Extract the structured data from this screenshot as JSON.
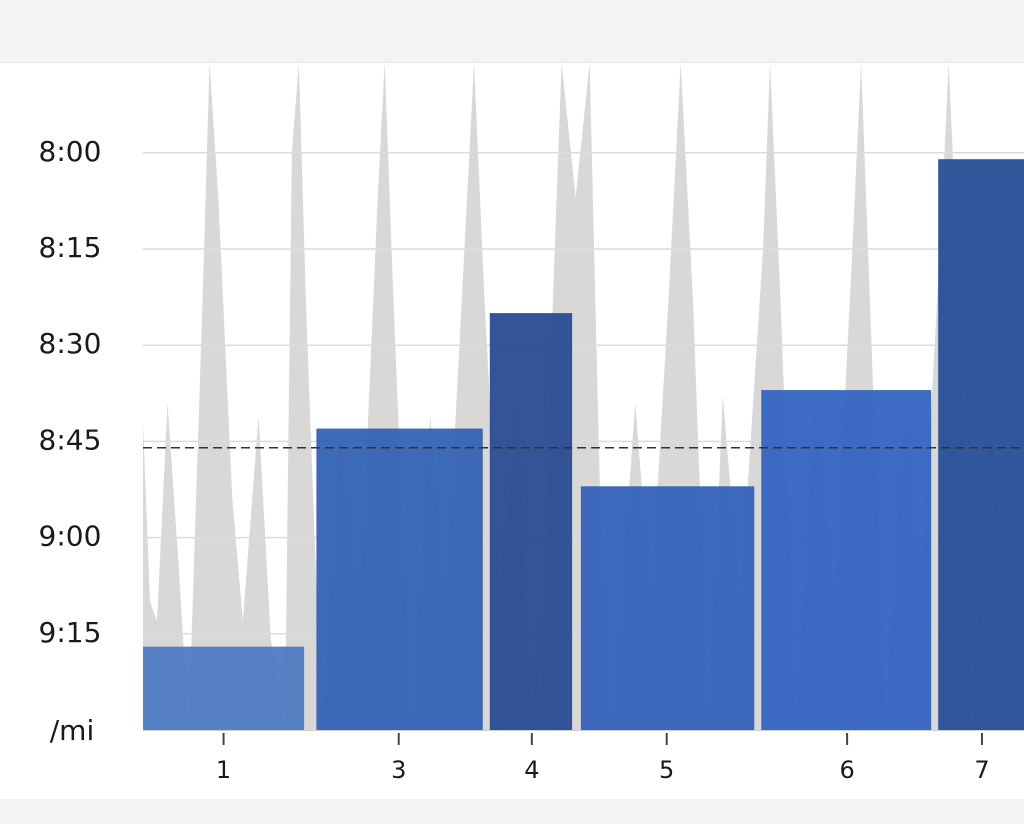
{
  "chart_data": {
    "type": "bar",
    "y_unit": "/mi",
    "ylim": [
      570,
      466
    ],
    "yticks": [
      {
        "value": 480,
        "label": "8:00"
      },
      {
        "value": 495,
        "label": "8:15"
      },
      {
        "value": 510,
        "label": "8:30"
      },
      {
        "value": 525,
        "label": "8:45"
      },
      {
        "value": 540,
        "label": "9:00"
      },
      {
        "value": 555,
        "label": "9:15"
      }
    ],
    "xlim": [
      0,
      50.3
    ],
    "xticks": [
      {
        "value": 4.6,
        "label": "1"
      },
      {
        "value": 14.6,
        "label": "3"
      },
      {
        "value": 22.2,
        "label": "4"
      },
      {
        "value": 29.9,
        "label": "5"
      },
      {
        "value": 40.2,
        "label": "6"
      },
      {
        "value": 47.9,
        "label": "7"
      }
    ],
    "grid": true,
    "bars": {
      "x_start": [
        0,
        9.9,
        19.8,
        25.0,
        35.3,
        45.4
      ],
      "x_end": [
        9.2,
        19.4,
        24.5,
        34.9,
        45.0,
        50.3
      ],
      "values": [
        557,
        523,
        505,
        532,
        517,
        481
      ],
      "colors": [
        "#4a78c2",
        "#2f5fb5",
        "#23478f",
        "#2f5eb8",
        "#2f60bf",
        "#234a96"
      ]
    },
    "reference_line": {
      "value": 526,
      "color": "#333333"
    },
    "background_area": {
      "color": "#d9d8d7",
      "x": [
        0,
        0.4,
        0.8,
        1.4,
        2.0,
        2.6,
        3.4,
        3.8,
        4.3,
        5.1,
        5.7,
        6.6,
        7.3,
        8.1,
        8.5,
        8.9,
        9.3,
        10.2,
        11.3,
        12.4,
        13.4,
        13.8,
        14.3,
        15.3,
        16.4,
        17.3,
        18.2,
        18.9,
        19.5,
        20.4,
        21.4,
        22.1,
        22.7,
        23.4,
        23.9,
        24.7,
        25.5,
        26.1,
        26.8,
        28.1,
        29.0,
        30.0,
        30.7,
        31.4,
        32.3,
        33.1,
        34.1,
        35.4,
        35.8,
        36.4,
        37.3,
        38.4,
        39.5,
        40.5,
        41.0,
        41.5,
        42.4,
        43.5,
        44.4,
        45.5,
        46.0,
        46.6,
        47.3,
        48.4,
        49.3,
        50.3
      ],
      "values": [
        522,
        550,
        553,
        519,
        543,
        570,
        503,
        466,
        487,
        534,
        553,
        521,
        556,
        570,
        480,
        466,
        503,
        570,
        523,
        550,
        487,
        466,
        503,
        570,
        521,
        550,
        503,
        466,
        503,
        550,
        519,
        565,
        570,
        503,
        466,
        487,
        466,
        534,
        570,
        519,
        550,
        503,
        466,
        503,
        570,
        518,
        550,
        495,
        466,
        503,
        570,
        518,
        550,
        495,
        466,
        503,
        570,
        518,
        550,
        495,
        466,
        503,
        570,
        520,
        553,
        534
      ]
    }
  }
}
